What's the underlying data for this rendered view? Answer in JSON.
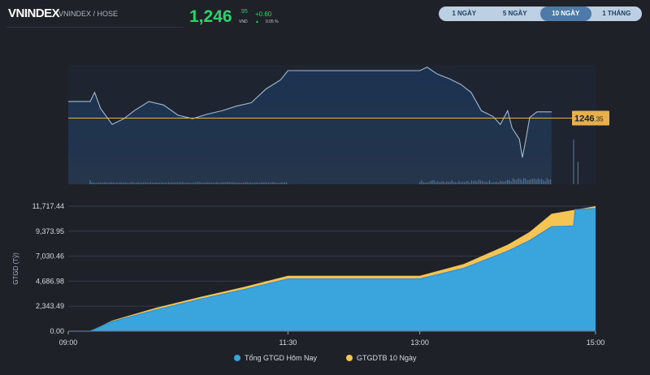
{
  "header": {
    "title": "VNINDEX",
    "subtitle": "VNINDEX / HOSE",
    "price_int": "1,246",
    "price_dec": ".95",
    "price_unit": "VND",
    "change": "+0.60",
    "change_arrow": "▲",
    "change_pct": "0.05 %"
  },
  "tabs": [
    {
      "label": "1 NGÀY",
      "active": false
    },
    {
      "label": "5 NGÀY",
      "active": false
    },
    {
      "label": "10 NGÀY",
      "active": true
    },
    {
      "label": "1 THÁNG",
      "active": false
    }
  ],
  "colors": {
    "price_line": "#9fbad4",
    "ref_line": "#e8b04a",
    "volume": "#4f6f8f",
    "today_series": "#3aa4dc",
    "avg_series": "#f6c453",
    "positive": "#2bd36a"
  },
  "chart_data": [
    {
      "type": "area",
      "x_range": [
        "09:00",
        "15:00"
      ],
      "reference_line": {
        "value": 1246.35,
        "label_int": "1246",
        "label_dec": ".35"
      },
      "price_points": [
        [
          "09:00",
          1247.8
        ],
        [
          "09:15",
          1247.8
        ],
        [
          "09:18",
          1248.6
        ],
        [
          "09:22",
          1247.2
        ],
        [
          "09:30",
          1245.8
        ],
        [
          "09:38",
          1246.3
        ],
        [
          "09:45",
          1247.0
        ],
        [
          "09:55",
          1247.8
        ],
        [
          "10:05",
          1247.5
        ],
        [
          "10:15",
          1246.6
        ],
        [
          "10:25",
          1246.3
        ],
        [
          "10:35",
          1246.7
        ],
        [
          "10:45",
          1247.0
        ],
        [
          "10:55",
          1247.4
        ],
        [
          "11:05",
          1247.7
        ],
        [
          "11:15",
          1248.9
        ],
        [
          "11:25",
          1249.7
        ],
        [
          "11:30",
          1250.5
        ],
        [
          "12:00",
          1250.5
        ],
        [
          "13:00",
          1250.5
        ],
        [
          "13:05",
          1250.8
        ],
        [
          "13:12",
          1250.2
        ],
        [
          "13:20",
          1249.8
        ],
        [
          "13:28",
          1249.3
        ],
        [
          "13:35",
          1248.6
        ],
        [
          "13:42",
          1247.0
        ],
        [
          "13:50",
          1246.5
        ],
        [
          "13:55",
          1245.8
        ],
        [
          "14:00",
          1247.0
        ],
        [
          "14:03",
          1245.5
        ],
        [
          "14:08",
          1244.5
        ],
        [
          "14:10",
          1242.9
        ],
        [
          "14:12",
          1244.2
        ],
        [
          "14:15",
          1246.4
        ],
        [
          "14:20",
          1246.9
        ],
        [
          "14:30",
          1246.9
        ]
      ],
      "volume_range": [
        0,
        100
      ],
      "volume": {
        "open": 9,
        "morning": [
          3,
          5
        ],
        "afternoon": [
          4,
          10
        ],
        "late": [
          6,
          14
        ],
        "close_bar": 100,
        "atc_bar": 50
      }
    },
    {
      "type": "area",
      "ylabel": "GTGD (Tỷ)",
      "y_ticks": [
        "0.00",
        "2,343.49",
        "4,686.98",
        "7,030.46",
        "9,373.95",
        "11,717.44"
      ],
      "ylim": [
        0,
        11717.44
      ],
      "x_ticks": [
        "09:00",
        "11:30",
        "13:00",
        "15:00"
      ],
      "series": [
        {
          "name": "Tổng GTGD Hôm Nay",
          "points": [
            [
              "09:00",
              0
            ],
            [
              "09:15",
              0
            ],
            [
              "09:30",
              900
            ],
            [
              "10:00",
              2000
            ],
            [
              "10:30",
              3000
            ],
            [
              "11:00",
              3900
            ],
            [
              "11:30",
              4900
            ],
            [
              "13:00",
              4900
            ],
            [
              "13:30",
              5900
            ],
            [
              "14:00",
              7500
            ],
            [
              "14:15",
              8500
            ],
            [
              "14:30",
              9800
            ],
            [
              "14:45",
              9850
            ],
            [
              "14:46",
              11400
            ],
            [
              "15:00",
              11500
            ]
          ]
        },
        {
          "name": "GTGDTB 10 Ngày",
          "points": [
            [
              "09:00",
              0
            ],
            [
              "09:15",
              0
            ],
            [
              "09:30",
              1000
            ],
            [
              "10:00",
              2200
            ],
            [
              "10:30",
              3200
            ],
            [
              "11:00",
              4150
            ],
            [
              "11:30",
              5200
            ],
            [
              "13:00",
              5200
            ],
            [
              "13:30",
              6300
            ],
            [
              "14:00",
              8100
            ],
            [
              "14:15",
              9300
            ],
            [
              "14:30",
              11000
            ],
            [
              "15:00",
              11717
            ]
          ]
        }
      ]
    }
  ],
  "legend": [
    "Tổng GTGD Hôm Nay",
    "GTGDTB 10 Ngày"
  ]
}
